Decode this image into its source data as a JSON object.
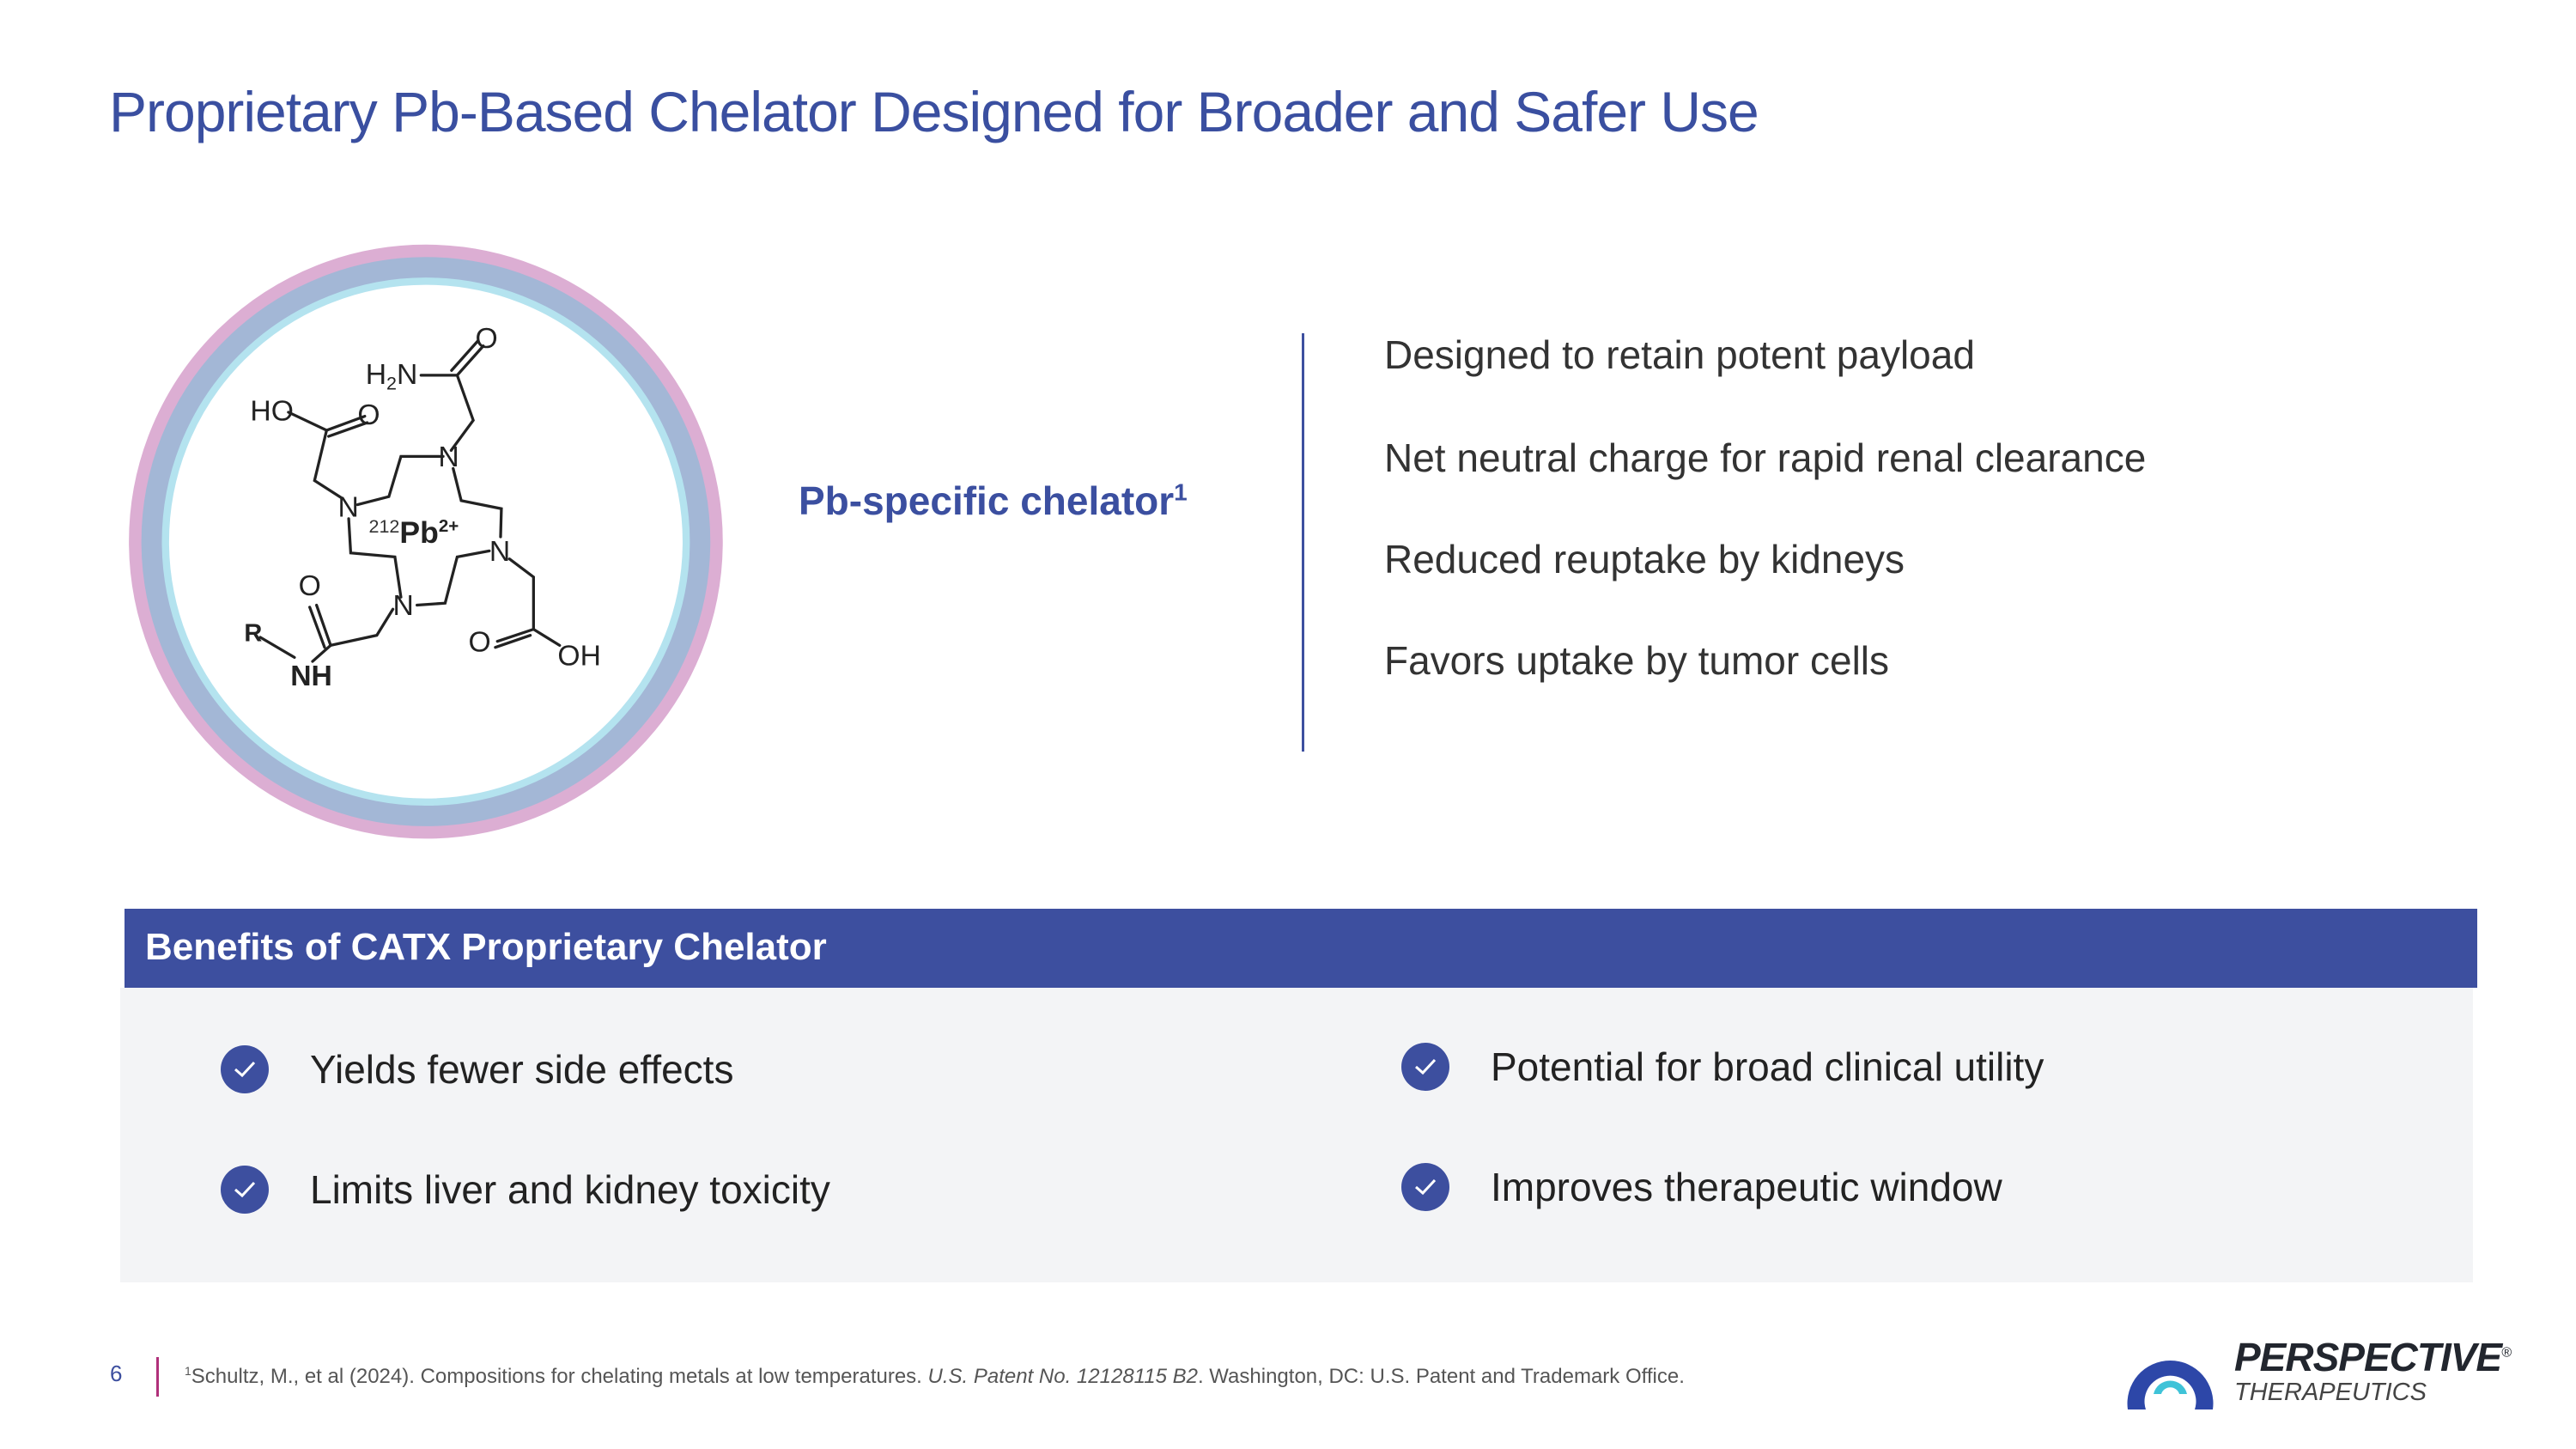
{
  "title": "Proprietary Pb-Based Chelator Designed for Broader and Safer Use",
  "molecule": {
    "labels": {
      "h2n_h": "H",
      "h2n_2": "2",
      "h2n_n": "N",
      "o": "O",
      "ho": "HO",
      "oh": "OH",
      "n": "N",
      "r": "R",
      "nh": "NH",
      "isotope": "212",
      "pb": "Pb",
      "charge": "2+"
    },
    "ring_colors": [
      "#dcaed3",
      "#a3b7d6",
      "#b4e3ef"
    ]
  },
  "chelator_label": {
    "text": "Pb-specific chelator",
    "footnote_mark": "1"
  },
  "features": [
    "Designed to retain potent payload",
    "Net neutral charge for rapid renal clearance",
    "Reduced reuptake by kidneys",
    "Favors uptake by tumor cells"
  ],
  "benefits": {
    "heading": "Benefits of CATX Proprietary Chelator",
    "items": [
      "Yields fewer side effects",
      "Limits liver and kidney toxicity",
      "Potential for broad clinical utility",
      "Improves therapeutic window"
    ],
    "icon": "check-circle-icon"
  },
  "footer": {
    "page_number": "6",
    "footnote_mark": "1",
    "footnote_a": "Schultz, M., et al (2024). Compositions for chelating metals at low temperatures. ",
    "footnote_italic": "U.S. Patent No. 12128115 B2",
    "footnote_b": ". Washington, DC: U.S. Patent and Trademark Office."
  },
  "logo": {
    "name": "PERSPECTIVE",
    "registered": "®",
    "sub": "THERAPEUTICS"
  },
  "colors": {
    "accent": "#3d4f9f",
    "title": "#3a4fa0",
    "panel": "#f3f4f6",
    "footer_rule": "#b0307a",
    "logo_cyan": "#3fc3d8",
    "logo_magenta": "#c2338a"
  }
}
